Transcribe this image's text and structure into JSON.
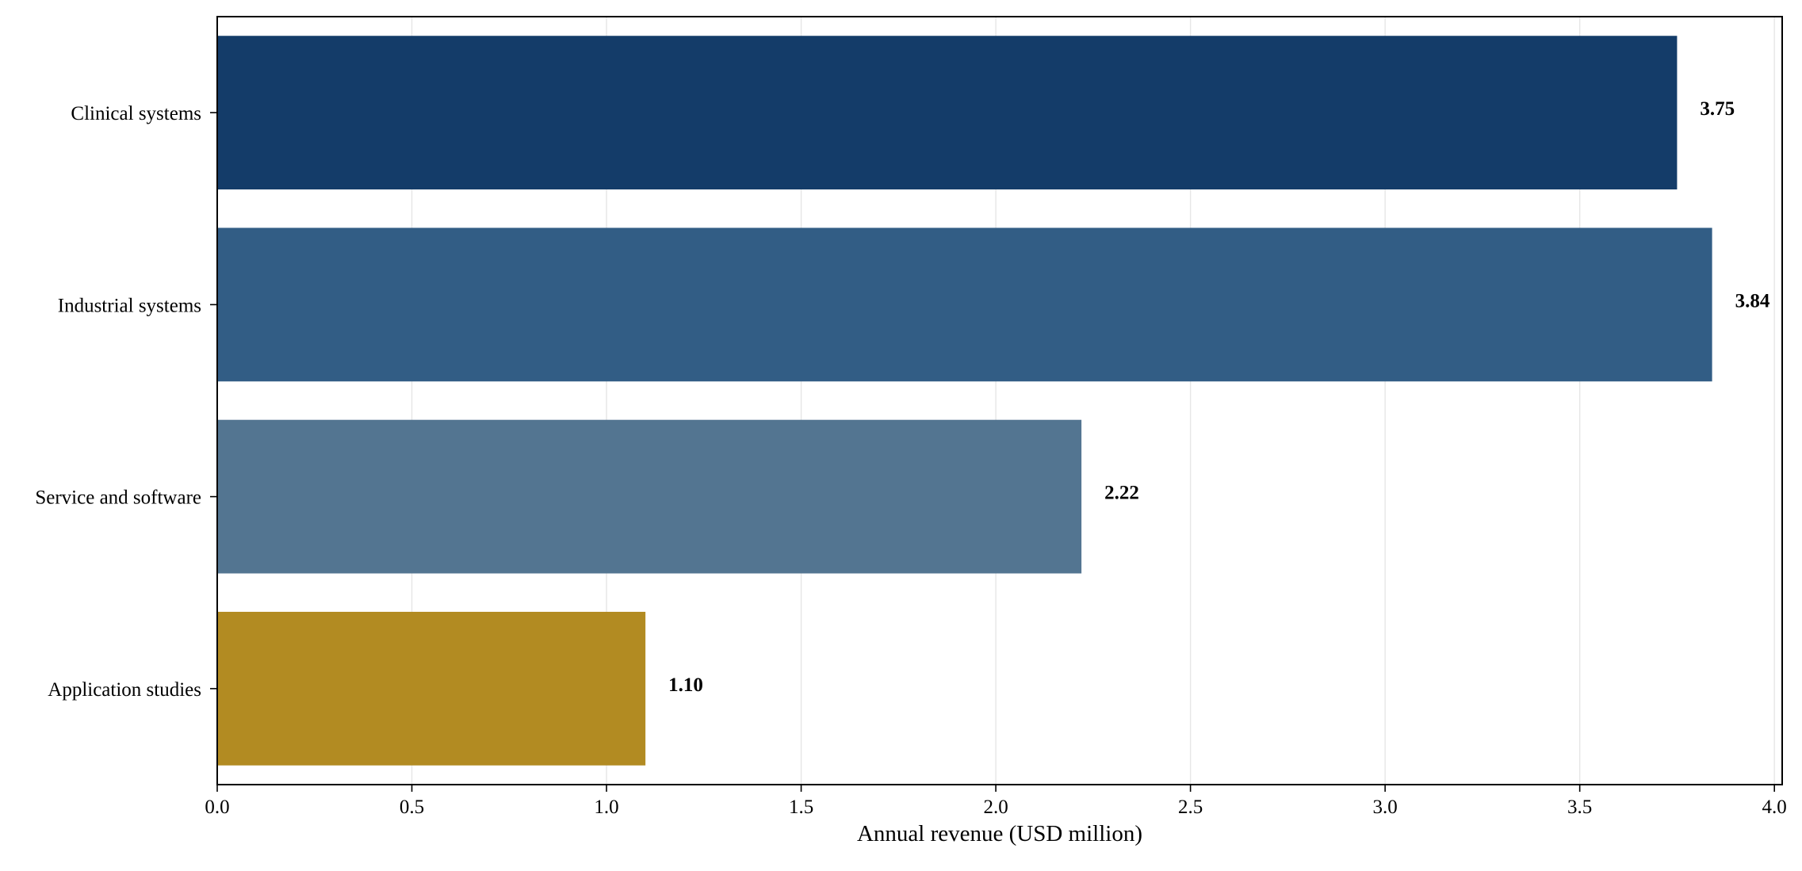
{
  "chart_data": {
    "type": "bar",
    "orientation": "horizontal",
    "categories": [
      "Clinical systems",
      "Industrial systems",
      "Service and software",
      "Application studies"
    ],
    "values": [
      3.75,
      3.84,
      2.22,
      1.1
    ],
    "value_labels": [
      "3.75",
      "3.84",
      "2.22",
      "1.10"
    ],
    "colors": [
      "#143c69",
      "#325d85",
      "#537591",
      "#b28b22"
    ],
    "xlabel": "Annual revenue (USD million)",
    "ylabel": "",
    "title": "",
    "xlim": [
      0,
      4.02
    ],
    "xticks": [
      0.0,
      0.5,
      1.0,
      1.5,
      2.0,
      2.5,
      3.0,
      3.5,
      4.0
    ],
    "xtick_labels": [
      "0.0",
      "0.5",
      "1.0",
      "1.5",
      "2.0",
      "2.5",
      "3.0",
      "3.5",
      "4.0"
    ],
    "grid": "vertical",
    "legend": "none"
  }
}
